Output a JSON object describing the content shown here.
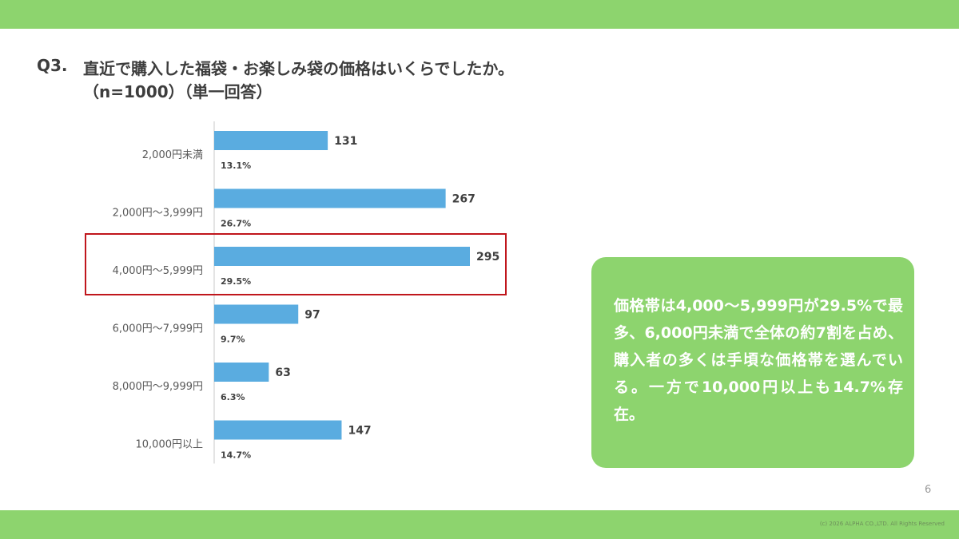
{
  "header": {
    "question_number": "Q3.",
    "question_text": "直近で購入した福袋・お楽しみ袋の価格はいくらでしたか。",
    "question_note": "（n=1000）（単一回答）"
  },
  "chart_data": {
    "type": "bar",
    "orientation": "horizontal",
    "categories": [
      "2,000円未満",
      "2,000円〜3,999円",
      "4,000円〜5,999円",
      "6,000円〜7,999円",
      "8,000円〜9,999円",
      "10,000円以上"
    ],
    "values": [
      131,
      267,
      295,
      97,
      63,
      147
    ],
    "percent_labels": [
      "13.1%",
      "26.7%",
      "29.5%",
      "9.7%",
      "6.3%",
      "14.7%"
    ],
    "value_labels": [
      "131",
      "267",
      "295",
      "97",
      "63",
      "147"
    ],
    "xlim": [
      0,
      295
    ],
    "highlighted_category": "4,000円〜5,999円",
    "bar_color": "#5aace0",
    "highlight_color": "#c0161c",
    "grid": false
  },
  "callout": {
    "text": "価格帯は4,000〜5,999円が29.5%で最多、6,000円未満で全体の約7割を占め、購入者の多くは手頃な価格帯を選んでいる。一方で10,000円以上も14.7%存在。"
  },
  "footer": {
    "page_number": "6",
    "copyright": "(c) 2026 ALPHA CO.,LTD. All Rights Reserved"
  },
  "colors": {
    "accent_band": "#8dd46e",
    "callout_bg": "#8dd46e",
    "text": "#3d3d3d"
  }
}
